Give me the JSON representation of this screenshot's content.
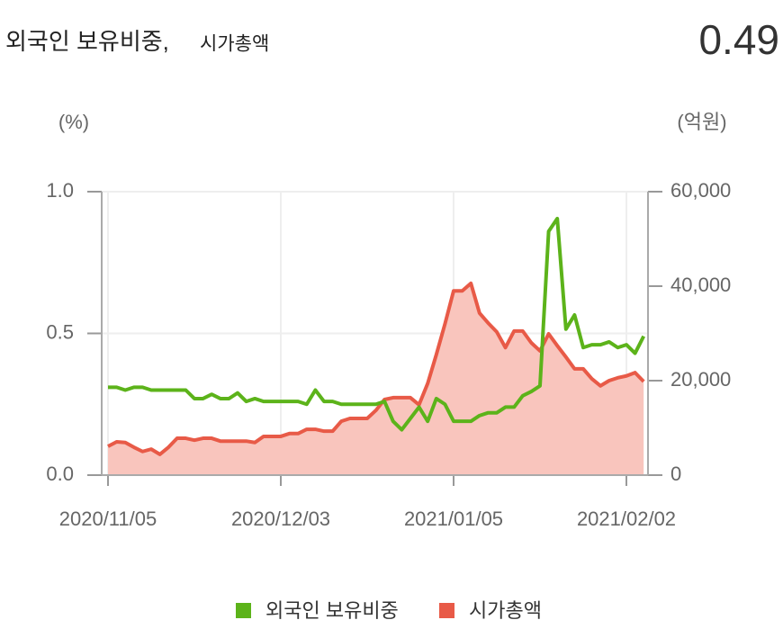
{
  "chart_data": {
    "type": "combo",
    "title": "외국인 보유비중,",
    "subtitle": "시가총액",
    "current_value": 0.49,
    "y_label": "(%)",
    "y2_label": "(억원)",
    "categories": [
      "2020/11/05",
      null,
      null,
      null,
      null,
      null,
      null,
      null,
      null,
      null,
      null,
      null,
      null,
      null,
      null,
      null,
      null,
      null,
      null,
      null,
      "2020/12/03",
      null,
      null,
      null,
      null,
      null,
      null,
      null,
      null,
      null,
      null,
      null,
      null,
      null,
      null,
      null,
      null,
      null,
      null,
      null,
      "2021/01/05",
      null,
      null,
      null,
      null,
      null,
      null,
      null,
      null,
      null,
      null,
      null,
      null,
      null,
      null,
      null,
      null,
      null,
      null,
      null,
      "2021/02/02",
      null,
      null
    ],
    "series": [
      {
        "name": "외국인 보유비중",
        "type": "line",
        "color": "#5cb31a",
        "axis": "y",
        "values": [
          0.31,
          0.31,
          0.3,
          0.31,
          0.31,
          0.3,
          0.3,
          0.3,
          0.3,
          0.3,
          0.27,
          0.27,
          0.285,
          0.27,
          0.27,
          0.29,
          0.26,
          0.27,
          0.26,
          0.26,
          0.26,
          0.26,
          0.26,
          0.25,
          0.3,
          0.26,
          0.26,
          0.25,
          0.25,
          0.25,
          0.25,
          0.25,
          0.26,
          0.19,
          0.16,
          0.2,
          0.24,
          0.19,
          0.27,
          0.25,
          0.19,
          0.19,
          0.19,
          0.21,
          0.22,
          0.22,
          0.24,
          0.24,
          0.28,
          0.295,
          0.315,
          0.86,
          0.905,
          0.515,
          0.565,
          0.45,
          0.46,
          0.46,
          0.47,
          0.45,
          0.46,
          0.43,
          0.49
        ]
      },
      {
        "name": "시가총액",
        "type": "area",
        "color": "#e85a47",
        "fill": "#f9c5bd",
        "axis": "y2",
        "values": [
          6100,
          7050,
          6900,
          5900,
          5000,
          5500,
          4400,
          5900,
          7800,
          7800,
          7400,
          7800,
          7800,
          7200,
          7200,
          7200,
          7200,
          6900,
          8200,
          8200,
          8200,
          8800,
          8800,
          9700,
          9700,
          9300,
          9300,
          11400,
          12000,
          12000,
          12000,
          13700,
          16000,
          16400,
          16400,
          16400,
          14900,
          19400,
          25500,
          32000,
          39000,
          39000,
          40600,
          34300,
          32200,
          30300,
          27000,
          30500,
          30500,
          28000,
          26300,
          29900,
          27400,
          25000,
          22500,
          22500,
          20400,
          18900,
          20000,
          20600,
          21000,
          21700,
          19800
        ]
      }
    ],
    "ylim": [
      0,
      1
    ],
    "yticks": [
      {
        "value": 0,
        "label": "0.0"
      },
      0.5,
      {
        "value": 1,
        "label": "1.0"
      }
    ],
    "y2lim": [
      0,
      60000
    ],
    "y2ticks": [
      0,
      {
        "value": 20000,
        "label": "20,000"
      },
      {
        "value": 40000,
        "label": "40,000"
      },
      {
        "value": 60000,
        "label": "60,000"
      }
    ],
    "grid": true
  }
}
